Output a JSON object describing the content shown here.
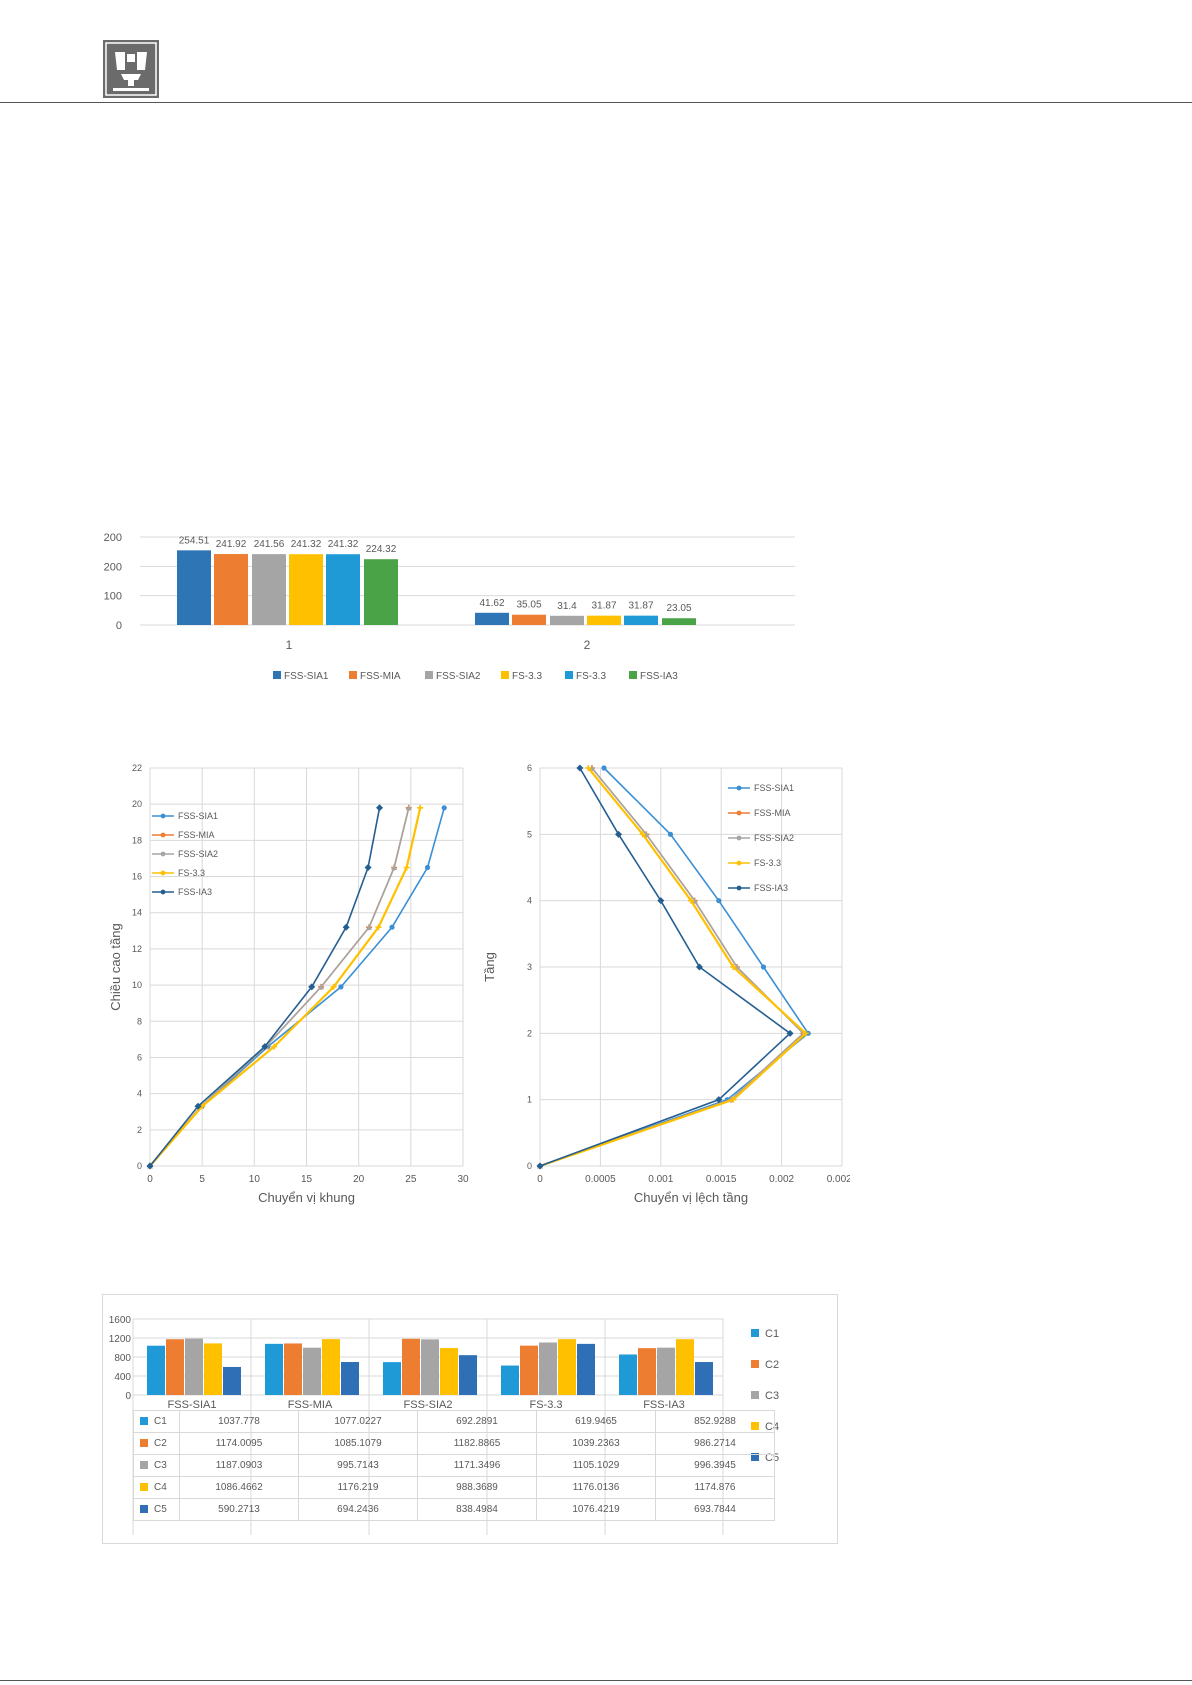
{
  "colors": {
    "blue": "#2e75b6",
    "orange": "#ed7d31",
    "gray": "#a5a5a5",
    "yellow": "#ffc000",
    "lightblue": "#5b9bd5",
    "green": "#4aa346",
    "navy": "#255e91",
    "lineblue": "#3b8fd4",
    "barblue": "#1f9ad6",
    "c5blue": "#2f6fb5",
    "grid": "#d9d9d9",
    "text": "#595959"
  },
  "logo": {
    "icon": "university-logo-icon"
  },
  "chart_data": [
    {
      "type": "bar",
      "categories": [
        "1",
        "2"
      ],
      "series": [
        {
          "name": "FSS-SIA1",
          "values": [
            254.51,
            41.62
          ]
        },
        {
          "name": "FSS-MIA",
          "values": [
            241.92,
            35.05
          ]
        },
        {
          "name": "FSS-SIA2",
          "values": [
            241.56,
            31.4
          ]
        },
        {
          "name": "FS-3.3",
          "values": [
            241.32,
            31.87
          ]
        },
        {
          "name": "FS-3.3",
          "values": [
            241.32,
            31.87
          ]
        },
        {
          "name": "FSS-IA3",
          "values": [
            224.32,
            23.05
          ]
        }
      ],
      "data_labels": [
        [
          "254.51",
          "241.92",
          "241.56",
          "241.32",
          "241.32",
          "224.32"
        ],
        [
          "41.62",
          "35.05",
          "31.4",
          "31.87",
          "31.87",
          "23.05"
        ]
      ],
      "yticks": [
        "0",
        "100",
        "200",
        "200"
      ],
      "ylim": [
        0,
        300
      ],
      "legend": "bottom",
      "grid": true
    },
    {
      "type": "line",
      "xlabel": "Chuyển vị khung",
      "ylabel": "Chiều cao tầng",
      "xlim": [
        0,
        30
      ],
      "ylim": [
        0,
        22
      ],
      "xticks": [
        "0",
        "5",
        "10",
        "15",
        "20",
        "25",
        "30"
      ],
      "yticks": [
        "0",
        "2",
        "4",
        "6",
        "8",
        "10",
        "12",
        "14",
        "16",
        "18",
        "20",
        "22"
      ],
      "legend": "top-left",
      "grid": true,
      "series": [
        {
          "name": "FSS-SIA1",
          "points": [
            [
              0,
              0
            ],
            [
              5,
              3.3
            ],
            [
              11.3,
              6.6
            ],
            [
              18.3,
              9.9
            ],
            [
              23.2,
              13.2
            ],
            [
              26.6,
              16.5
            ],
            [
              28.2,
              19.8
            ]
          ]
        },
        {
          "name": "FSS-MIA",
          "points": [
            [
              0,
              0
            ],
            [
              4.9,
              3.3
            ],
            [
              11.1,
              6.6
            ],
            [
              16.4,
              9.9
            ],
            [
              21.0,
              13.2
            ],
            [
              23.4,
              16.5
            ],
            [
              24.8,
              19.8
            ]
          ]
        },
        {
          "name": "FSS-SIA2",
          "points": [
            [
              0,
              0
            ],
            [
              4.9,
              3.3
            ],
            [
              11.1,
              6.6
            ],
            [
              16.4,
              9.9
            ],
            [
              21.0,
              13.2
            ],
            [
              23.4,
              16.5
            ],
            [
              24.8,
              19.8
            ]
          ]
        },
        {
          "name": "FS-3.3",
          "points": [
            [
              0,
              0
            ],
            [
              5,
              3.3
            ],
            [
              11.9,
              6.6
            ],
            [
              17.6,
              9.9
            ],
            [
              21.9,
              13.2
            ],
            [
              24.6,
              16.5
            ],
            [
              25.9,
              19.8
            ]
          ]
        },
        {
          "name": "FSS-IA3",
          "points": [
            [
              0,
              0
            ],
            [
              4.6,
              3.3
            ],
            [
              11,
              6.6
            ],
            [
              15.5,
              9.9
            ],
            [
              18.8,
              13.2
            ],
            [
              20.9,
              16.5
            ],
            [
              22.0,
              19.8
            ]
          ]
        }
      ]
    },
    {
      "type": "line",
      "xlabel": "Chuyển vị lệch tầng",
      "ylabel": "Tầng",
      "xlim": [
        0,
        0.0025
      ],
      "ylim": [
        0,
        6
      ],
      "xticks": [
        "0",
        "0.0005",
        "0.001",
        "0.0015",
        "0.002",
        "0.0025"
      ],
      "yticks": [
        "0",
        "1",
        "2",
        "3",
        "4",
        "5",
        "6"
      ],
      "legend": "top-right",
      "grid": true,
      "series": [
        {
          "name": "FSS-SIA1",
          "points": [
            [
              0,
              0
            ],
            [
              0.00155,
              1
            ],
            [
              0.00222,
              2
            ],
            [
              0.00185,
              3
            ],
            [
              0.00148,
              4
            ],
            [
              0.00108,
              5
            ],
            [
              0.00053,
              6
            ]
          ]
        },
        {
          "name": "FSS-MIA",
          "points": [
            [
              0,
              0
            ],
            [
              0.00158,
              1
            ],
            [
              0.00218,
              2
            ],
            [
              0.00163,
              3
            ],
            [
              0.00128,
              4
            ],
            [
              0.00088,
              5
            ],
            [
              0.00043,
              6
            ]
          ]
        },
        {
          "name": "FSS-SIA2",
          "points": [
            [
              0,
              0
            ],
            [
              0.00158,
              1
            ],
            [
              0.00218,
              2
            ],
            [
              0.00163,
              3
            ],
            [
              0.00128,
              4
            ],
            [
              0.00088,
              5
            ],
            [
              0.00043,
              6
            ]
          ]
        },
        {
          "name": "FS-3.3",
          "points": [
            [
              0,
              0
            ],
            [
              0.0016,
              1
            ],
            [
              0.0022,
              2
            ],
            [
              0.0016,
              3
            ],
            [
              0.00125,
              4
            ],
            [
              0.00085,
              5
            ],
            [
              0.0004,
              6
            ]
          ]
        },
        {
          "name": "FSS-IA3",
          "points": [
            [
              0,
              0
            ],
            [
              0.00148,
              1
            ],
            [
              0.00207,
              2
            ],
            [
              0.00132,
              3
            ],
            [
              0.001,
              4
            ],
            [
              0.00065,
              5
            ],
            [
              0.00033,
              6
            ]
          ]
        }
      ]
    },
    {
      "type": "bar",
      "categories": [
        "FSS-SIA1",
        "FSS-MIA",
        "FSS-SIA2",
        "FS-3.3",
        "FSS-IA3"
      ],
      "yticks": [
        "0",
        "400",
        "800",
        "1200",
        "1600"
      ],
      "ylim": [
        0,
        1600
      ],
      "legend": "right",
      "grid": true,
      "series": [
        {
          "name": "C1",
          "values": [
            1037.778,
            1077.0227,
            692.2891,
            619.9465,
            852.9288
          ]
        },
        {
          "name": "C2",
          "values": [
            1174.0095,
            1085.1079,
            1182.8865,
            1039.2363,
            986.2714
          ]
        },
        {
          "name": "C3",
          "values": [
            1187.0903,
            995.7143,
            1171.3496,
            1105.1029,
            996.3945
          ]
        },
        {
          "name": "C4",
          "values": [
            1086.4662,
            1176.219,
            988.3689,
            1176.0136,
            1174.876
          ]
        },
        {
          "name": "C5",
          "values": [
            590.2713,
            694.2436,
            838.4984,
            1076.4219,
            693.7844
          ]
        }
      ],
      "table": {
        "rows": [
          {
            "label": "C1",
            "cells": [
              "1037.778",
              "1077.0227",
              "692.2891",
              "619.9465",
              "852.9288"
            ]
          },
          {
            "label": "C2",
            "cells": [
              "1174.0095",
              "1085.1079",
              "1182.8865",
              "1039.2363",
              "986.2714"
            ]
          },
          {
            "label": "C3",
            "cells": [
              "1187.0903",
              "995.7143",
              "1171.3496",
              "1105.1029",
              "996.3945"
            ]
          },
          {
            "label": "C4",
            "cells": [
              "1086.4662",
              "1176.219",
              "988.3689",
              "1176.0136",
              "1174.876"
            ]
          },
          {
            "label": "C5",
            "cells": [
              "590.2713",
              "694.2436",
              "838.4984",
              "1076.4219",
              "693.7844"
            ]
          }
        ]
      }
    }
  ]
}
